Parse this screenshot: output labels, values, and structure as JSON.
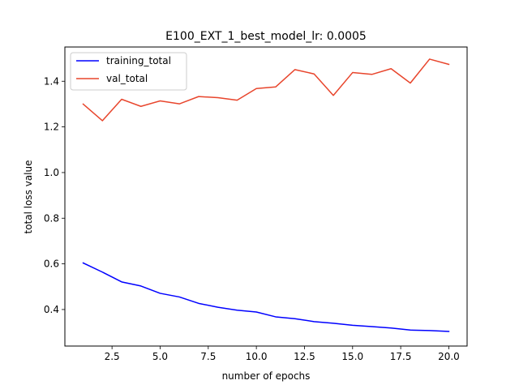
{
  "figure": {
    "background": "#ffffff"
  },
  "chart_data": {
    "type": "line",
    "title": "E100_EXT_1_best_model_lr: 0.0005",
    "xlabel": "number of epochs",
    "ylabel": "total loss value",
    "xlim": [
      0.05,
      20.95
    ],
    "ylim": [
      0.24,
      1.55
    ],
    "xticks": [
      2.5,
      5.0,
      7.5,
      10.0,
      12.5,
      15.0,
      17.5,
      20.0
    ],
    "xtick_labels": [
      "2.5",
      "5.0",
      "7.5",
      "10.0",
      "12.5",
      "15.0",
      "17.5",
      "20.0"
    ],
    "yticks": [
      0.4,
      0.6,
      0.8,
      1.0,
      1.2,
      1.4
    ],
    "ytick_labels": [
      "0.4",
      "0.6",
      "0.8",
      "1.0",
      "1.2",
      "1.4"
    ],
    "grid": false,
    "legend_position": "upper-left",
    "x": [
      1,
      2,
      3,
      4,
      5,
      6,
      7,
      8,
      9,
      10,
      11,
      12,
      13,
      14,
      15,
      16,
      17,
      18,
      19,
      20
    ],
    "series": [
      {
        "name": "training_total",
        "color": "#0000ff",
        "values": [
          0.604,
          0.564,
          0.521,
          0.503,
          0.471,
          0.455,
          0.427,
          0.41,
          0.397,
          0.389,
          0.368,
          0.36,
          0.347,
          0.34,
          0.331,
          0.325,
          0.319,
          0.31,
          0.308,
          0.304
        ]
      },
      {
        "name": "val_total",
        "color": "#e8452c",
        "values": [
          1.3,
          1.227,
          1.321,
          1.29,
          1.314,
          1.301,
          1.333,
          1.328,
          1.317,
          1.368,
          1.375,
          1.451,
          1.432,
          1.338,
          1.438,
          1.43,
          1.455,
          1.392,
          1.497,
          1.474
        ]
      }
    ]
  }
}
